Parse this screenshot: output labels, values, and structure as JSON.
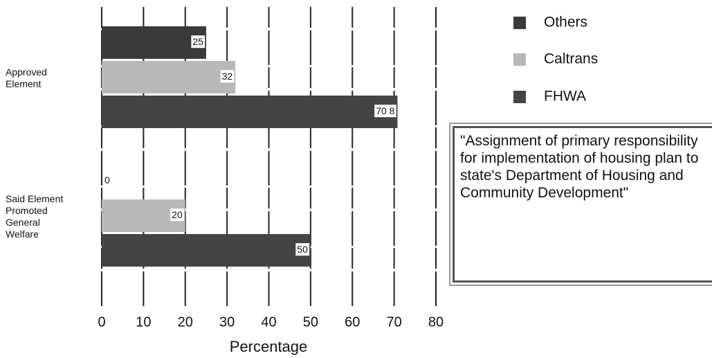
{
  "chart_data": {
    "type": "hbar",
    "categories": [
      "Approved\nElement",
      "Said Element\nPromoted\nGeneral\nWelfare"
    ],
    "series": [
      {
        "name": "Others",
        "color": "#3a3a3a",
        "values": [
          25,
          0
        ]
      },
      {
        "name": "Caltrans",
        "color": "#b8b8b8",
        "values": [
          32,
          20
        ]
      },
      {
        "name": "FHWA",
        "color": "#444444",
        "values": [
          70.8,
          50
        ],
        "value_labels": [
          "70 8",
          "50"
        ]
      }
    ],
    "xlabel": "Percentage",
    "xlim": [
      0,
      80
    ],
    "xticks": [
      0,
      10,
      20,
      30,
      40,
      50,
      60,
      70,
      80
    ],
    "grid": true,
    "legend": "upper right",
    "annotation": "\"Assignment of primary responsibility for implementation of housing plan to state's Department of Housing and Community Development\""
  }
}
